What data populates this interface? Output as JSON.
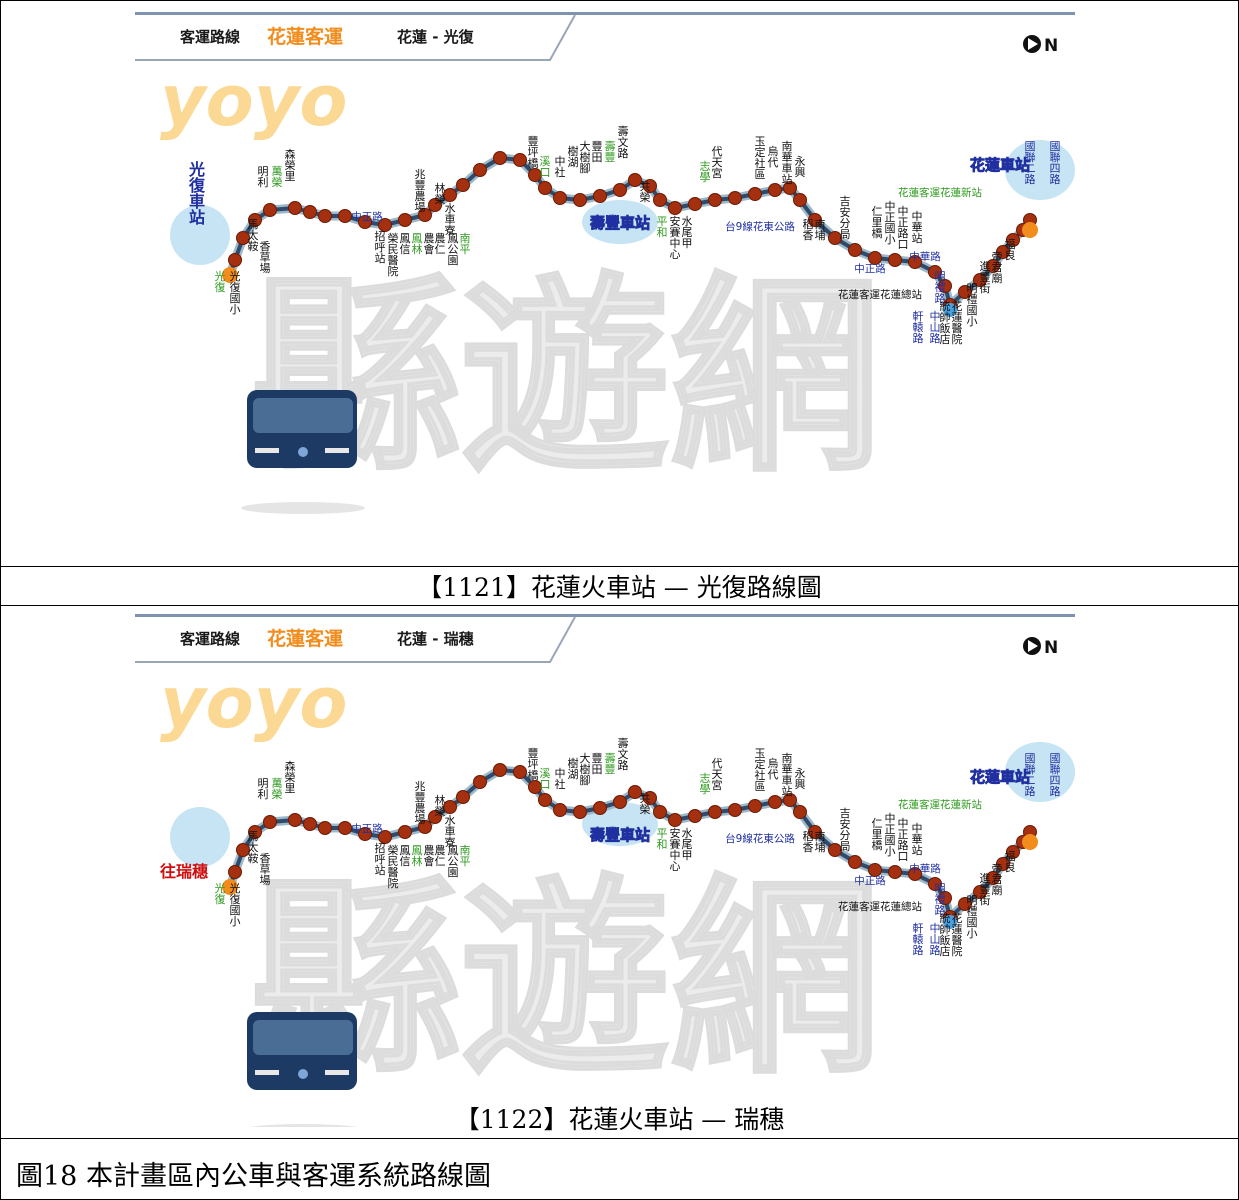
{
  "maps": [
    {
      "header_label": "客運路線",
      "company": "花蓮客運",
      "route": "花蓮 - 光復",
      "north": "N",
      "terminal_left": "光復車站",
      "terminal_right": "花蓮車站",
      "hub": "壽豐車站",
      "left_extra": "",
      "caption": "【1121】花蓮火車站 — 光復路線圖",
      "stops": [
        "光復",
        "光復國小",
        "香草場",
        "馬太鞍",
        "明利",
        "萬榮",
        "森榮里",
        "招呼站",
        "榮民醫院",
        "鳳信",
        "鳳林",
        "農會",
        "農仁",
        "鳳公園",
        "南平",
        "中正路",
        "水車寮",
        "林榮",
        "兆豐農場",
        "豐坪橋",
        "溪口",
        "中社",
        "樹湖",
        "大樹腳",
        "豐田",
        "壽豐",
        "壽文路",
        "共榮",
        "平和",
        "安賽中心",
        "水尾甲",
        "台9線花東公路",
        "志學",
        "代天宮",
        "玉定社區",
        "烏代",
        "南華車站",
        "永興",
        "稻香",
        "南埔",
        "吉安分局",
        "中正路",
        "仁里橋",
        "中正國小",
        "中正路口",
        "中華站",
        "中華路",
        "明禮路",
        "花蓮客運花蓮總站",
        "軒轅路",
        "中山路",
        "統帥飯店",
        "花蓮醫院",
        "明禮國小",
        "進豐街",
        "帝君廟",
        "福良",
        "國聯二路",
        "國聯四路",
        "花蓮客運花蓮新站"
      ]
    },
    {
      "header_label": "客運路線",
      "company": "花蓮客運",
      "route": "花蓮 - 瑞穗",
      "north": "N",
      "terminal_left": "",
      "terminal_right": "花蓮車站",
      "hub": "壽豐車站",
      "left_extra": "往瑞穗",
      "caption": "【1122】花蓮火車站 — 瑞穗",
      "stops": [
        "光復",
        "光復國小",
        "香草場",
        "馬太鞍",
        "明利",
        "萬榮",
        "森榮里",
        "招呼站",
        "榮民醫院",
        "鳳信",
        "鳳林",
        "農會",
        "農仁",
        "鳳公園",
        "南平",
        "中正路",
        "水車寮",
        "林榮",
        "兆豐農場",
        "豐坪橋",
        "溪口",
        "中社",
        "樹湖",
        "大樹腳",
        "豐田",
        "壽豐",
        "壽文路",
        "共榮",
        "平和",
        "安賽中心",
        "水尾甲",
        "台9線花東公路",
        "志學",
        "代天宮",
        "玉定社區",
        "烏代",
        "南華車站",
        "永興",
        "稻香",
        "南埔",
        "吉安分局",
        "中正路",
        "仁里橋",
        "中正國小",
        "中正路口",
        "中華站",
        "中華路",
        "明禮路",
        "花蓮客運花蓮總站",
        "軒轅路",
        "中山路",
        "統帥飯店",
        "花蓮醫院",
        "明禮國小",
        "進豐街",
        "帝君廟",
        "福良",
        "國聯二路",
        "國聯四路",
        "花蓮客運花蓮新站"
      ]
    }
  ],
  "watermark": "縣遊網",
  "figure_caption": "圖18 本計畫區內公車與客運系統路線圖",
  "colors": {
    "stop": "#a5300f",
    "route": "#2f4a6a",
    "accent": "#f28c1c",
    "green": "#2e9a1e",
    "blue": "#2030a0",
    "red": "#d01010"
  }
}
